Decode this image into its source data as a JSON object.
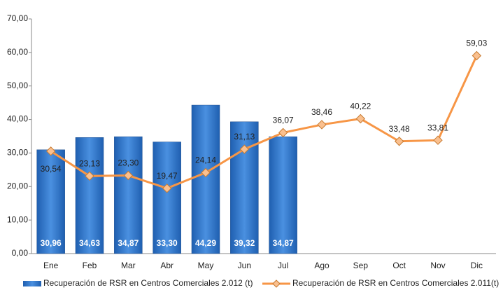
{
  "chart_data": {
    "type": "bar",
    "categories": [
      "Ene",
      "Feb",
      "Mar",
      "Abr",
      "May",
      "Jun",
      "Jul",
      "Ago",
      "Sep",
      "Oct",
      "Nov",
      "Dic"
    ],
    "series": [
      {
        "name": "Recuperación de RSR en Centros Comerciales 2.012 (t)",
        "type": "bar",
        "color": "#3a7fd0",
        "values": [
          30.96,
          34.63,
          34.87,
          33.3,
          44.29,
          39.32,
          34.87,
          null,
          null,
          null,
          null,
          null
        ],
        "value_labels": [
          "30,96",
          "34,63",
          "34,87",
          "33,30",
          "44,29",
          "39,32",
          "34,87",
          null,
          null,
          null,
          null,
          null
        ]
      },
      {
        "name": "Recuperación de RSR en Centros Comerciales 2.011(t)",
        "type": "line",
        "color": "#f79646",
        "values": [
          30.54,
          23.13,
          23.3,
          19.47,
          24.14,
          31.13,
          36.07,
          38.46,
          40.22,
          33.48,
          33.81,
          59.03
        ],
        "value_labels": [
          "30,54",
          "23,13",
          "23,30",
          "19,47",
          "24,14",
          "31,13",
          "36,07",
          "38,46",
          "40,22",
          "33,48",
          "33,81",
          "59,03"
        ]
      }
    ],
    "ylim": [
      0,
      70
    ],
    "yticks": [
      {
        "value": 0,
        "label": "0,00"
      },
      {
        "value": 10,
        "label": "10,00"
      },
      {
        "value": 20,
        "label": "20,00"
      },
      {
        "value": 30,
        "label": "30,00"
      },
      {
        "value": 40,
        "label": "40,00"
      },
      {
        "value": 50,
        "label": "50,00"
      },
      {
        "value": 60,
        "label": "60,00"
      },
      {
        "value": 70,
        "label": "70,00"
      }
    ],
    "legend": "bottom"
  }
}
